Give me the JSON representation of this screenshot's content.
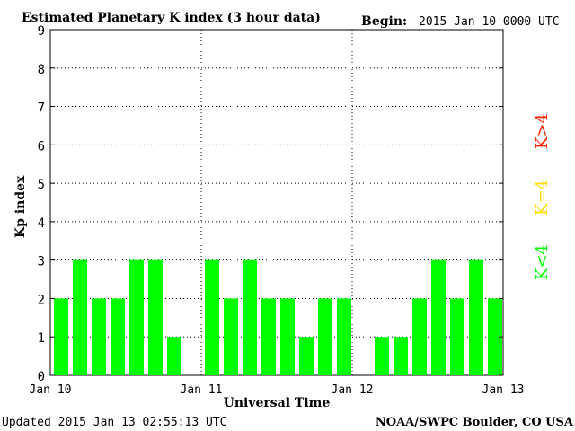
{
  "header": {
    "title": "Estimated Planetary K index (3 hour data)",
    "begin_label": "Begin:",
    "begin_value": "2015 Jan 10 0000 UTC"
  },
  "footer": {
    "updated": "Updated 2015 Jan 13 02:55:13 UTC",
    "source": "NOAA/SWPC Boulder, CO USA"
  },
  "legend": {
    "low": {
      "label": "K<4",
      "color": "#00ff00"
    },
    "mid": {
      "label": "K=4",
      "color": "#ffdd00"
    },
    "high": {
      "label": "K>4",
      "color": "#ff2200"
    }
  },
  "chart_data": {
    "type": "bar",
    "title": "Estimated Planetary K index (3 hour data)",
    "xlabel": "Universal Time",
    "ylabel": "Kp index",
    "ylim": [
      0,
      9
    ],
    "yticks": [
      "0",
      "1",
      "2",
      "3",
      "4",
      "5",
      "6",
      "7",
      "8",
      "9"
    ],
    "xticks": [
      "Jan 10",
      "Jan 11",
      "Jan 12",
      "Jan 13"
    ],
    "grid": true,
    "bar_color": "#00ff00",
    "series": [
      {
        "values": [
          2,
          3,
          2,
          2,
          3,
          3,
          1,
          0,
          3,
          2,
          3,
          2,
          2,
          1,
          2,
          2,
          0,
          1,
          1,
          2,
          3,
          2,
          3,
          2
        ]
      }
    ]
  }
}
